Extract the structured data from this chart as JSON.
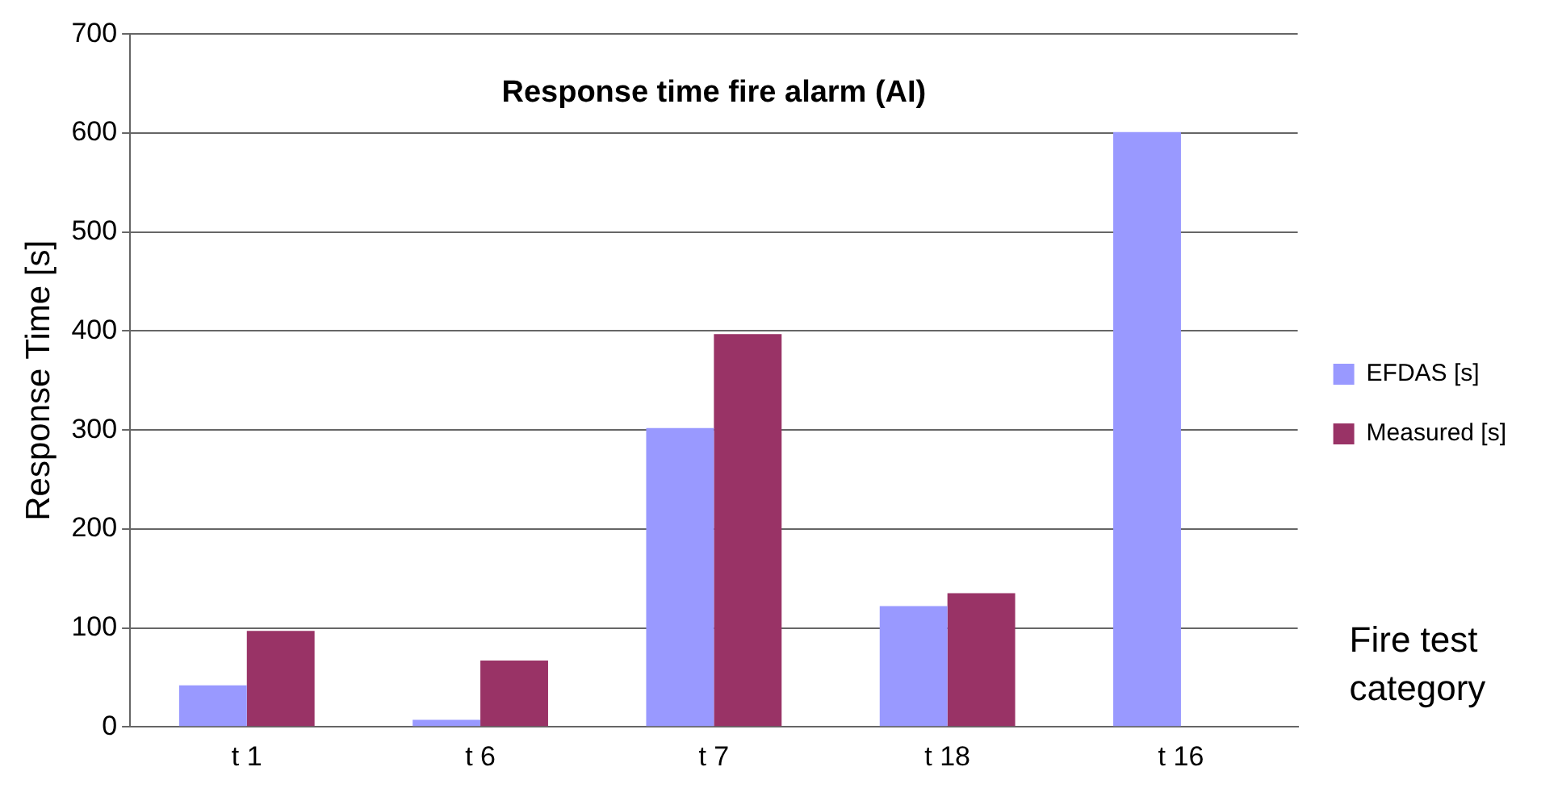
{
  "chart_data": {
    "type": "bar",
    "title": "Response time fire alarm (AI)",
    "xlabel": "Fire test category",
    "ylabel": "Response Time [s]",
    "categories": [
      "t 1",
      "t 6",
      "t 7",
      "t 18",
      "t 16"
    ],
    "series": [
      {
        "name": "EFDAS [s]",
        "color": "#9999ff",
        "values": [
          42,
          7,
          302,
          122,
          601
        ]
      },
      {
        "name": "Measured [s]",
        "color": "#993366",
        "values": [
          97,
          67,
          397,
          135,
          null
        ]
      }
    ],
    "ylim": [
      0,
      700
    ],
    "yticks": [
      0,
      100,
      200,
      300,
      400,
      500,
      600,
      700
    ],
    "grid": "y",
    "legend": "right"
  }
}
